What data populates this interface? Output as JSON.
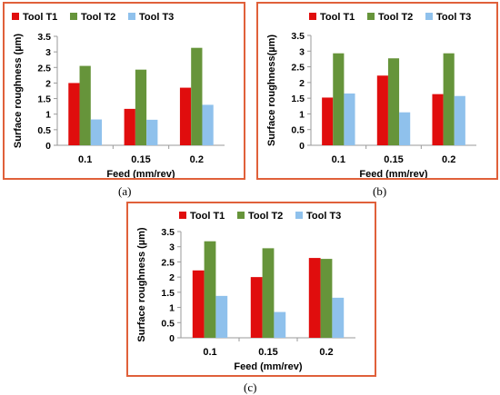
{
  "colors": {
    "T1": "#e00d0d",
    "T2": "#66943a",
    "T3": "#8fc1ec",
    "frame": "#e0603a"
  },
  "chart_data": [
    {
      "type": "bar",
      "caption": "(a)",
      "categories": [
        "0.1",
        "0.15",
        "0.2"
      ],
      "series": [
        {
          "name": "Tool T1",
          "values": [
            2.0,
            1.17,
            1.85
          ]
        },
        {
          "name": "Tool T2",
          "values": [
            2.55,
            2.43,
            3.13
          ]
        },
        {
          "name": "Tool T3",
          "values": [
            0.83,
            0.82,
            1.3
          ]
        }
      ],
      "xlabel": "Feed (mm/rev)",
      "ylabel": "Surface roughness (µm)",
      "ylim": [
        0,
        3.5
      ],
      "yticks": [
        "0",
        "0.5",
        "1",
        "1.5",
        "2",
        "2.5",
        "3",
        "3.5"
      ],
      "legend": "top",
      "grid": false
    },
    {
      "type": "bar",
      "caption": "(b)",
      "categories": [
        "0.1",
        "0.15",
        "0.2"
      ],
      "series": [
        {
          "name": "Tool T1",
          "values": [
            1.52,
            2.22,
            1.63
          ]
        },
        {
          "name": "Tool T2",
          "values": [
            2.93,
            2.77,
            2.93
          ]
        },
        {
          "name": "Tool T3",
          "values": [
            1.65,
            1.05,
            1.57
          ]
        }
      ],
      "xlabel": "Feed (mm/rev)",
      "ylabel": "Surface roughness(µm)",
      "ylim": [
        0,
        3.5
      ],
      "yticks": [
        "0",
        "0.5",
        "1",
        "1.5",
        "2",
        "2.5",
        "3",
        "3.5"
      ],
      "legend": "top",
      "grid": false
    },
    {
      "type": "bar",
      "caption": "(c)",
      "categories": [
        "0.1",
        "0.15",
        "0.2"
      ],
      "series": [
        {
          "name": "Tool T1",
          "values": [
            2.22,
            2.0,
            2.63
          ]
        },
        {
          "name": "Tool T2",
          "values": [
            3.18,
            2.95,
            2.6
          ]
        },
        {
          "name": "Tool T3",
          "values": [
            1.38,
            0.85,
            1.32
          ]
        }
      ],
      "xlabel": "Feed (mm/rev)",
      "ylabel": "Surface roughness (µm)",
      "ylim": [
        0,
        3.5
      ],
      "yticks": [
        "0",
        "0.5",
        "1",
        "1.5",
        "2",
        "2.5",
        "3",
        "3.5"
      ],
      "legend": "top",
      "grid": false
    }
  ]
}
